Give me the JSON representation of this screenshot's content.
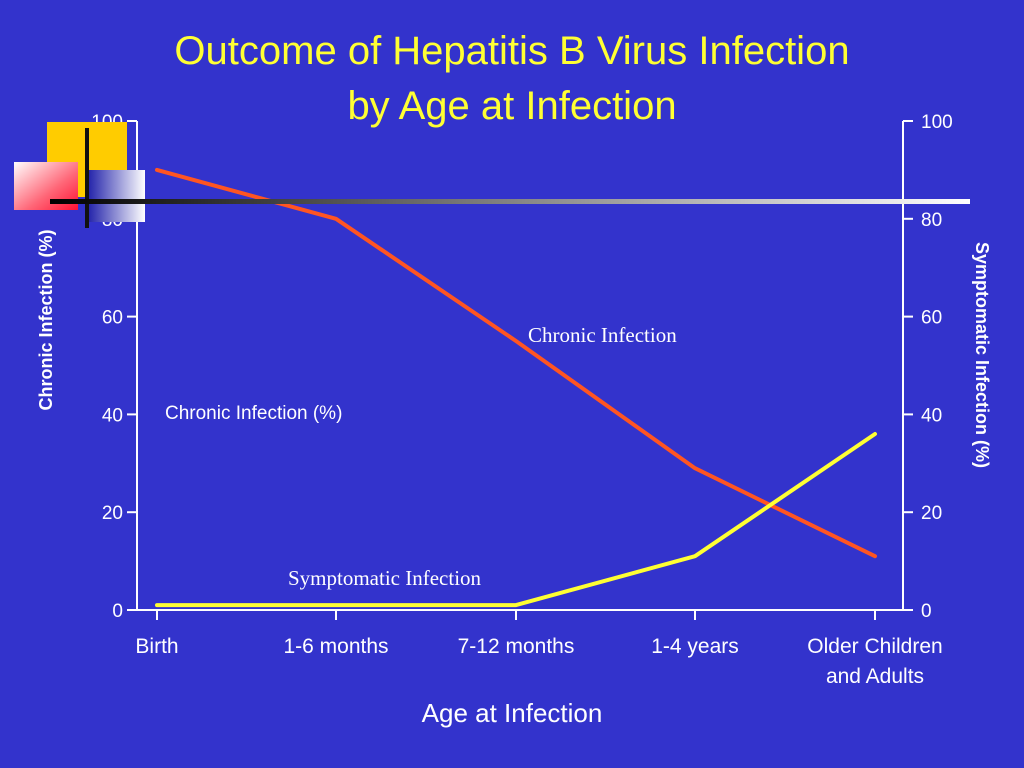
{
  "title_line1": "Outcome of Hepatitis B Virus Infection",
  "title_line2": "by Age at Infection",
  "colors": {
    "background": "#3333cc",
    "title": "#ffff33",
    "chronic": "#ff5522",
    "symptomatic": "#ffff33",
    "axis": "#ffffff"
  },
  "decoration": {
    "squares": [
      "gold-square-icon",
      "red-gradient-square-icon",
      "blue-gradient-square-icon"
    ],
    "rule": "gradient-horizontal-rule"
  },
  "chart_data": {
    "type": "line",
    "categories": [
      "Birth",
      "1-6 months",
      "7-12 months",
      "1-4 years",
      "Older Children\nand Adults"
    ],
    "xlabel": "Age at Infection",
    "ylabel_left": "Chronic Infection (%)",
    "ylabel_right": "Symptomatic Infection (%)",
    "ylim": [
      0,
      100
    ],
    "yticks": [
      0,
      20,
      40,
      60,
      80,
      100
    ],
    "series": [
      {
        "name": "Chronic Infection",
        "axis": "left",
        "values": [
          90,
          80,
          55,
          29,
          11
        ]
      },
      {
        "name": "Symptomatic Infection",
        "axis": "right",
        "values": [
          1,
          1,
          1,
          11,
          36
        ]
      }
    ],
    "annotations": {
      "chronic_label": "Chronic Infection",
      "symptomatic_label": "Symptomatic Infection",
      "chronic_percent_label": "Chronic Infection (%)"
    },
    "grid": false,
    "legend": "none"
  }
}
